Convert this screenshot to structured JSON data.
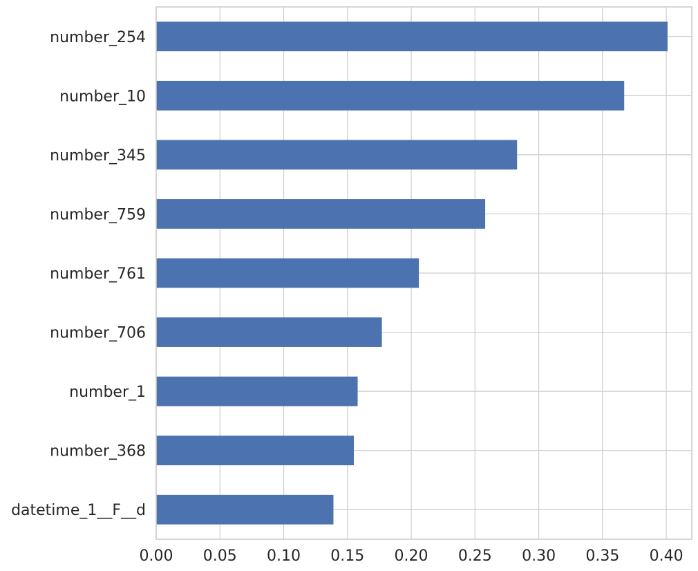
{
  "chart_data": {
    "type": "bar",
    "orientation": "horizontal",
    "title": "",
    "xlabel": "",
    "ylabel": "",
    "categories": [
      "number_254",
      "number_10",
      "number_345",
      "number_759",
      "number_761",
      "number_706",
      "number_1",
      "number_368",
      "datetime_1__F__d"
    ],
    "values": [
      0.401,
      0.367,
      0.283,
      0.258,
      0.206,
      0.177,
      0.158,
      0.155,
      0.139
    ],
    "xlim": [
      0,
      0.42
    ],
    "xticks": [
      0.0,
      0.05,
      0.1,
      0.15,
      0.2,
      0.25,
      0.3,
      0.35,
      0.4
    ],
    "xtick_labels": [
      "0.00",
      "0.05",
      "0.10",
      "0.15",
      "0.20",
      "0.25",
      "0.30",
      "0.35",
      "0.40"
    ],
    "grid": true,
    "legend": "none",
    "bar_color": "#4c72b0",
    "grid_color": "#cccccc",
    "text_color": "#262626"
  }
}
